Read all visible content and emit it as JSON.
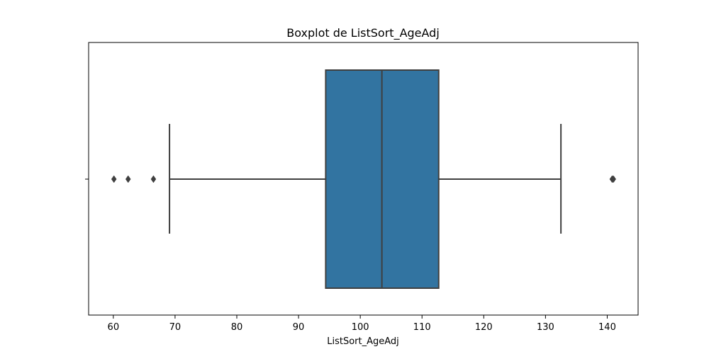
{
  "chart_data": {
    "type": "boxplot",
    "title": "Boxplot de ListSort_AgeAdj",
    "xlabel": "ListSort_AgeAdj",
    "ylabel": "",
    "xlim": [
      56,
      145
    ],
    "x_ticks": [
      60,
      70,
      80,
      90,
      100,
      110,
      120,
      130,
      140
    ],
    "grid": false,
    "orientation": "horizontal",
    "box": {
      "whisker_low": 69.1,
      "q1": 94.4,
      "median": 103.5,
      "q3": 112.7,
      "whisker_high": 132.5
    },
    "outliers": [
      60.1,
      62.4,
      66.5,
      140.8,
      141.0
    ],
    "colors": {
      "box_fill": "#3274a1",
      "line": "#3f3f3f",
      "axis": "#000000"
    }
  }
}
